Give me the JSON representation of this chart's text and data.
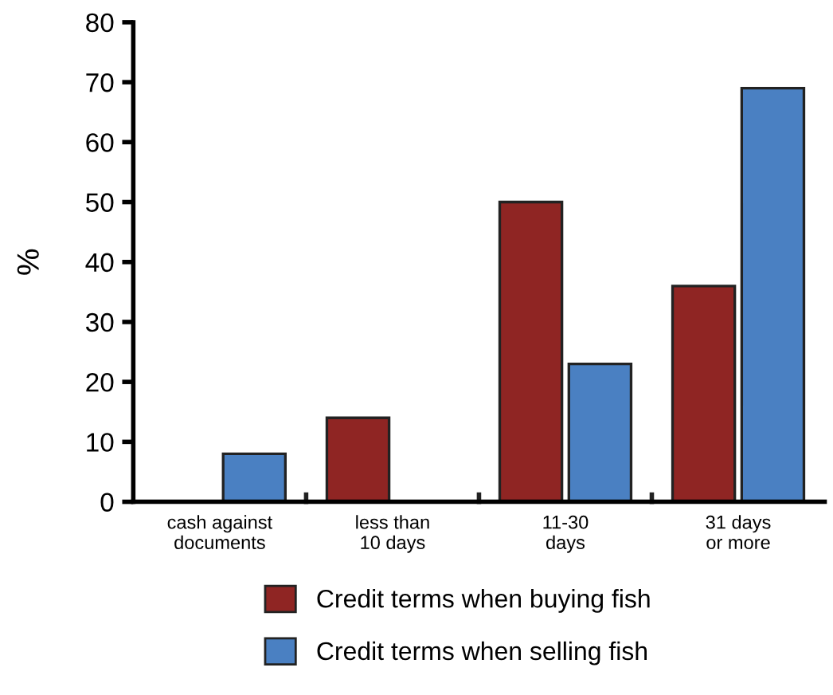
{
  "chart_data": {
    "type": "bar",
    "ylabel": "%",
    "categories": [
      "cash against\ndocuments",
      "less than\n10 days",
      "11-30\ndays",
      "31 days\nor more"
    ],
    "series": [
      {
        "name": "Credit terms when buying fish",
        "color": "#8f2523",
        "values": [
          0,
          14,
          50,
          36
        ]
      },
      {
        "name": "Credit terms when selling fish",
        "color": "#4a80c2",
        "values": [
          8,
          0,
          23,
          69
        ]
      }
    ],
    "ylim": [
      0,
      80
    ],
    "yticks": [
      0,
      10,
      20,
      30,
      40,
      50,
      60,
      70,
      80
    ],
    "grid": false,
    "legend": "bottom"
  }
}
